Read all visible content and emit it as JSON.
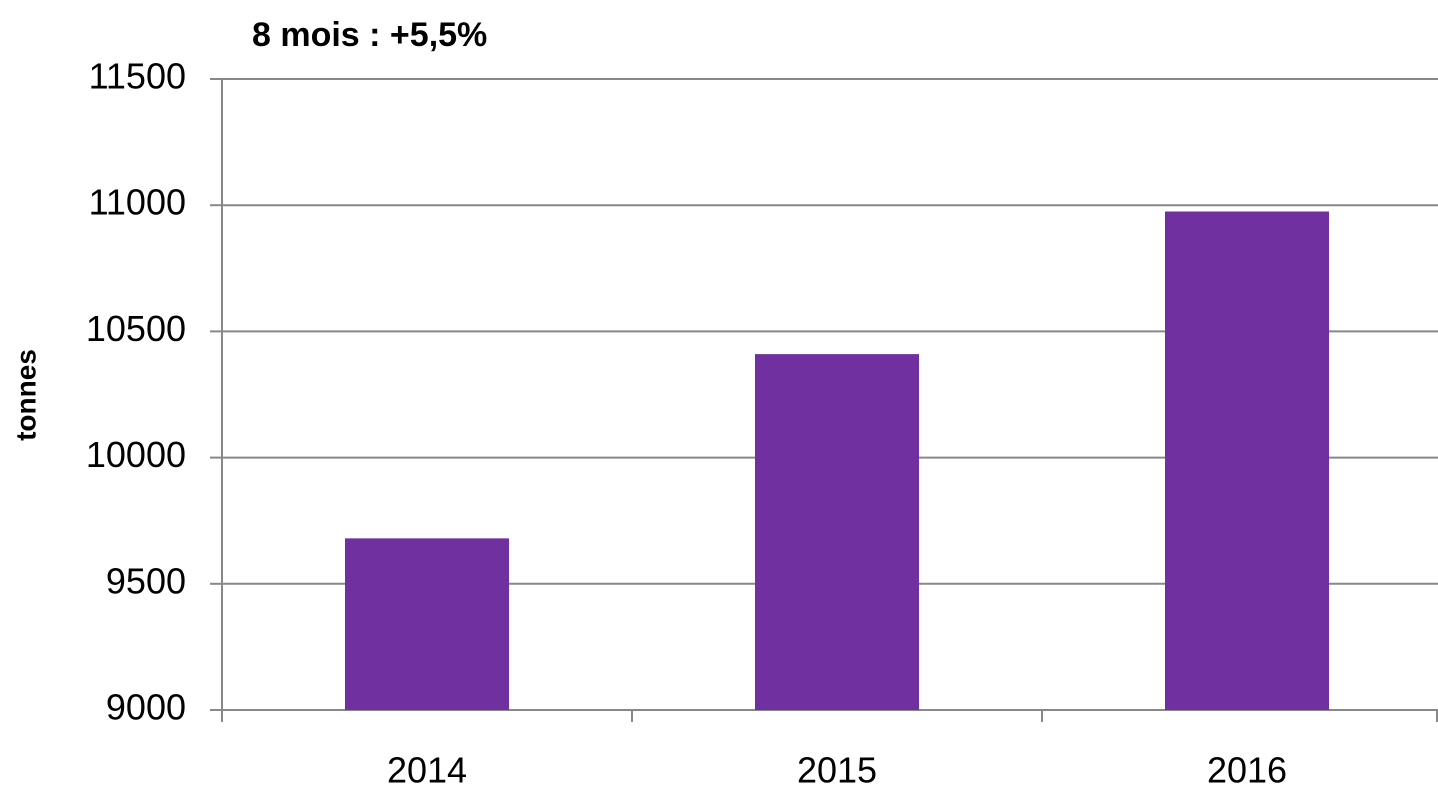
{
  "chart_data": {
    "type": "bar",
    "title": "8 mois : +5,5%",
    "y_label": "tonnes",
    "categories": [
      "2014",
      "2015",
      "2016"
    ],
    "values": [
      9680,
      10410,
      10975
    ],
    "color": "#7030a0",
    "ylim": [
      9000,
      11500
    ],
    "yticks": [
      9000,
      9500,
      10000,
      10500,
      11000,
      11500
    ],
    "grid": true
  }
}
